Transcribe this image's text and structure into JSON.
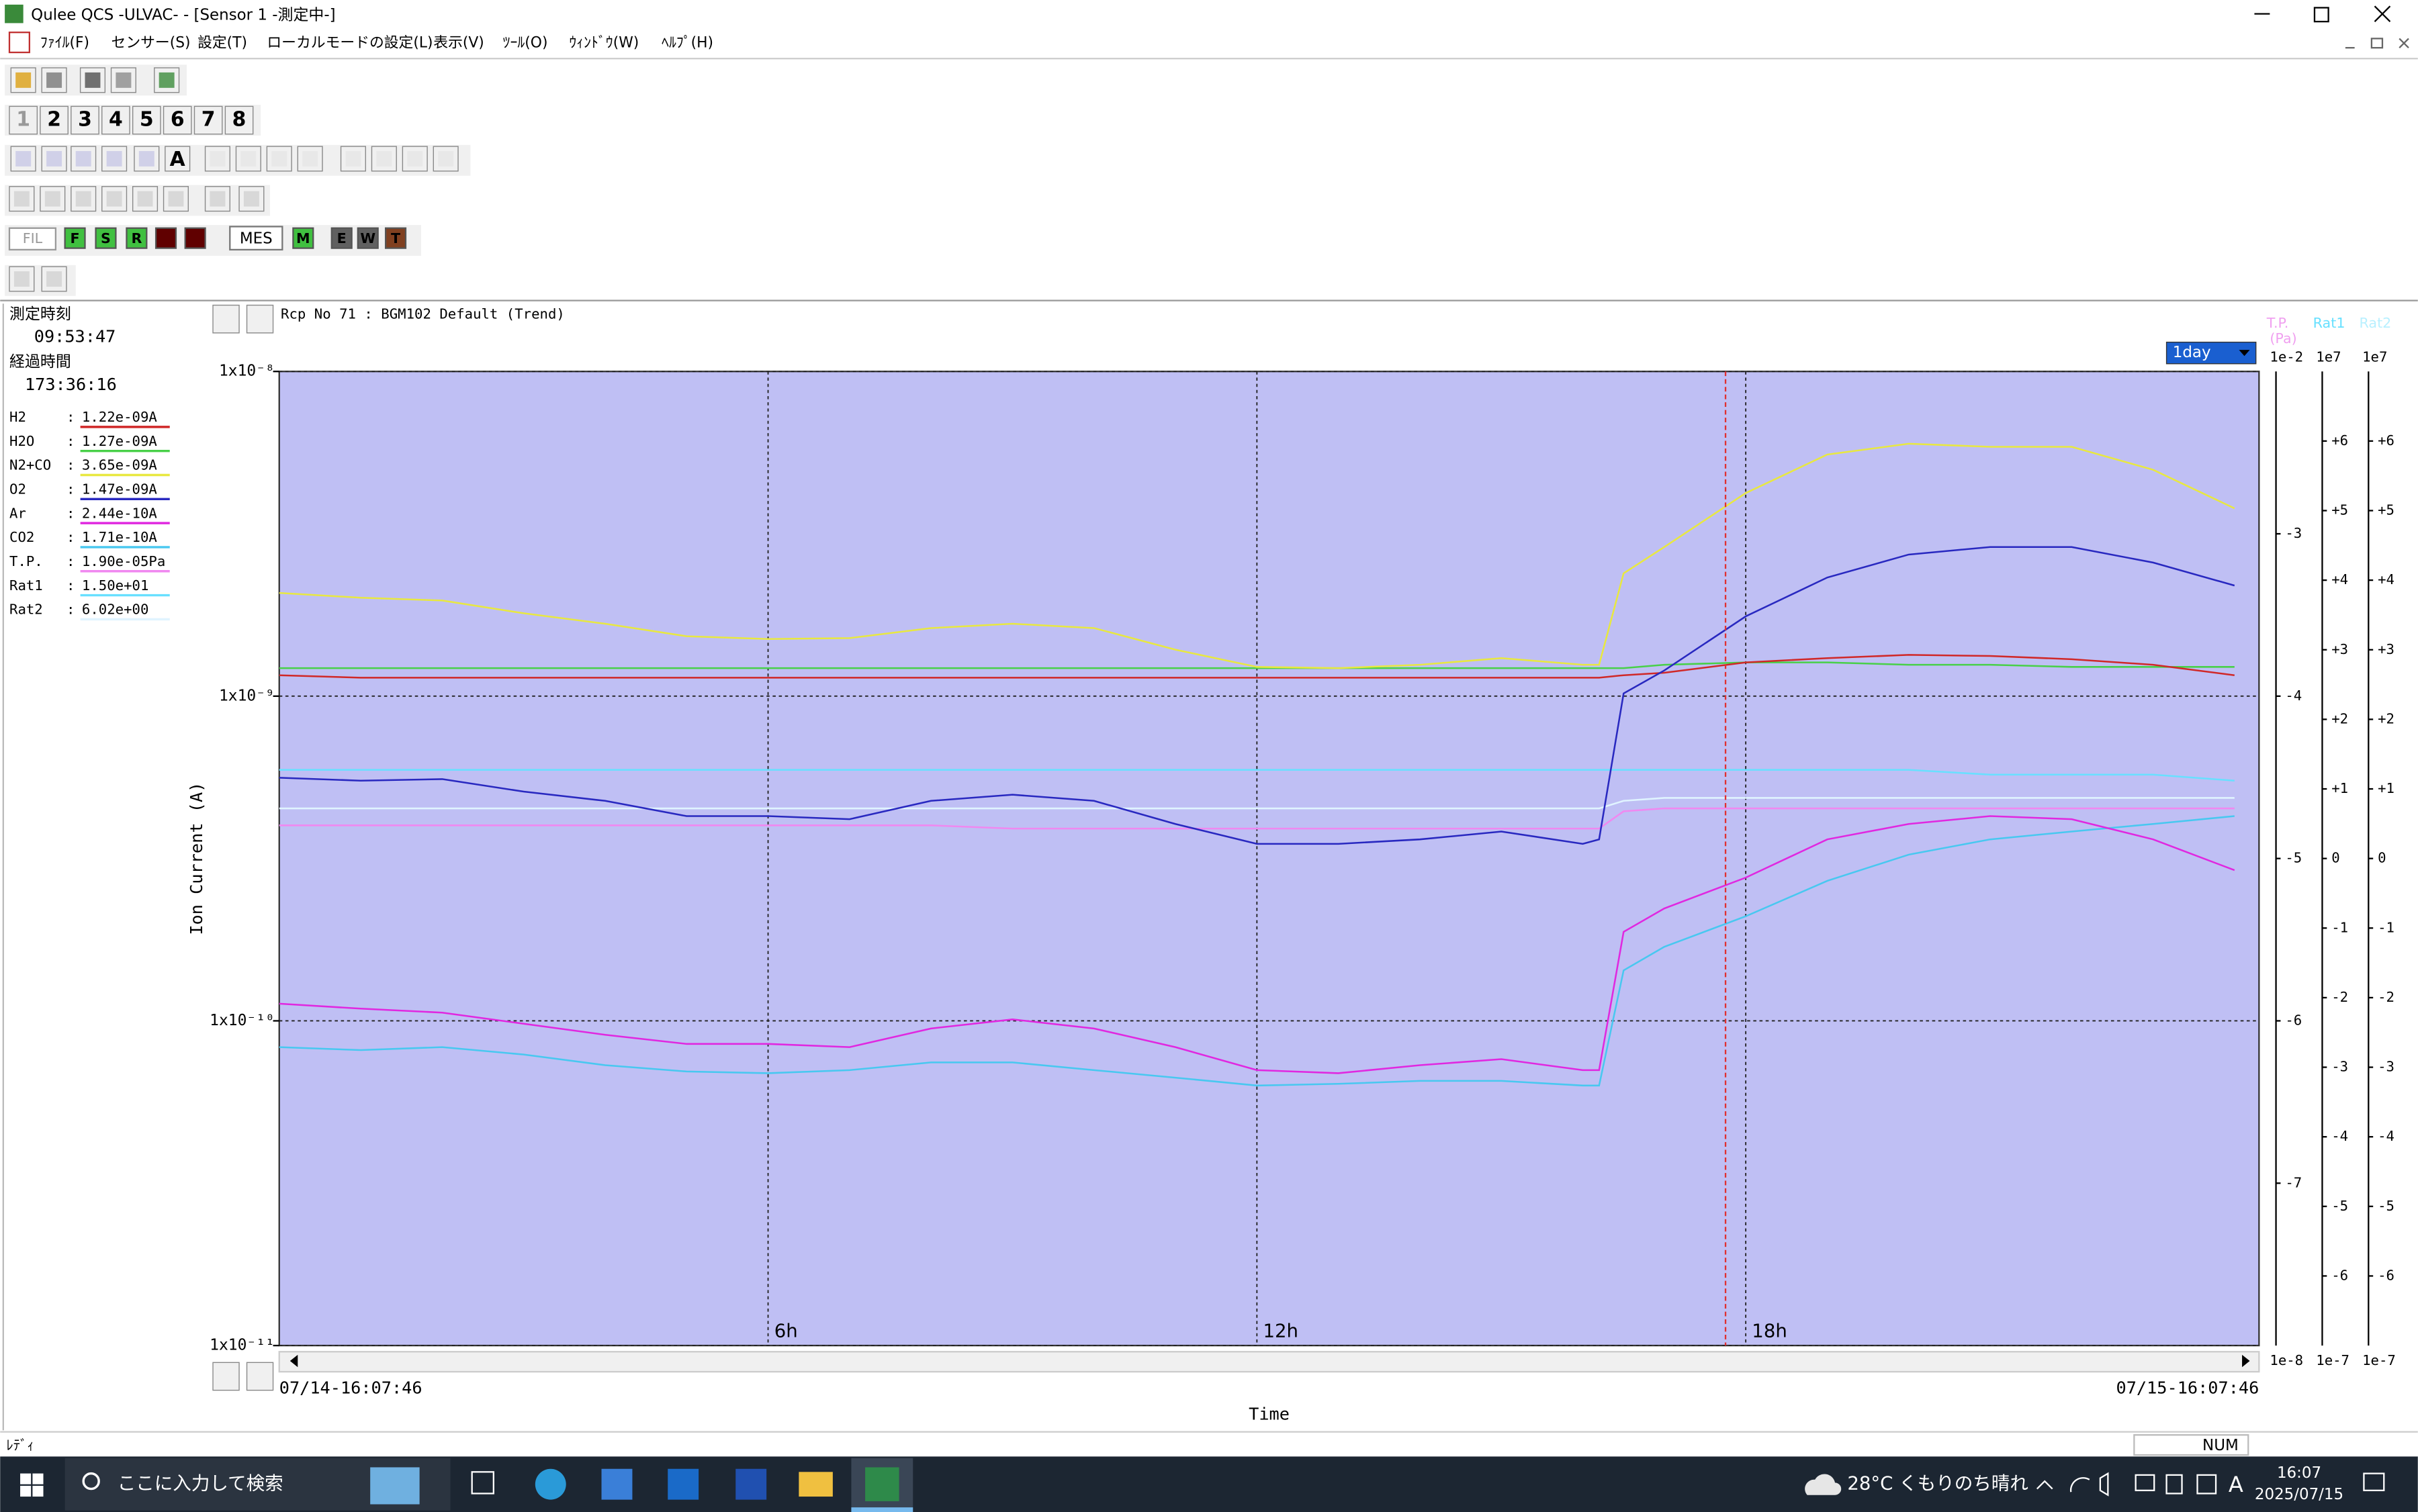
{
  "window": {
    "title": "Qulee QCS -ULVAC-  - [Sensor 1 -測定中-]"
  },
  "menu": [
    "ﾌｧｲﾙ(F)",
    "センサー(S)",
    "設定(T)",
    "ローカルモードの設定(L)",
    "表示(V)",
    "ﾂｰﾙ(O)",
    "ｳｨﾝﾄﾞｳ(W)",
    "ﾍﾙﾌﾟ(H)"
  ],
  "sensor_tabs": [
    "1",
    "2",
    "3",
    "4",
    "5",
    "6",
    "7",
    "8"
  ],
  "toolbar": {
    "font_button": "A",
    "filament": "FIL",
    "fil_buttons": [
      "F",
      "S",
      "R"
    ],
    "mes": "MES",
    "mes_buttons": [
      "M",
      "E",
      "W",
      "T"
    ]
  },
  "panel": {
    "time_label": "測定時刻",
    "time": "09:53:47",
    "elapsed_label": "経過時間",
    "elapsed": "173:36:16",
    "separator": ":"
  },
  "chart_data": {
    "type": "line",
    "title": "Rcp No 71 : BGM102 Default (Trend)",
    "y_label": "Ion Current (A)",
    "x_label": "Time",
    "x_start_label": "07/14-16:07:46",
    "x_end_label": "07/15-16:07:46",
    "range_select": "1day",
    "log_y": true,
    "grid": true,
    "ylim": [
      1e-11,
      1e-08
    ],
    "yticks": [
      {
        "value": 1e-08,
        "label": "1x10⁻⁸"
      },
      {
        "value": 1e-09,
        "label": "1x10⁻⁹"
      },
      {
        "value": 1e-10,
        "label": "1x10⁻¹⁰"
      },
      {
        "value": 1e-11,
        "label": "1x10⁻¹¹"
      }
    ],
    "xlim": [
      0,
      24.3
    ],
    "xticks": [
      {
        "value": 6,
        "label": "6h"
      },
      {
        "value": 12,
        "label": "12h"
      },
      {
        "value": 18,
        "label": "18h"
      }
    ],
    "x": [
      0,
      1,
      2,
      3,
      4,
      5,
      6,
      7,
      8,
      9,
      10,
      11,
      12,
      13,
      14,
      15,
      16,
      16.2,
      16.5,
      17,
      18,
      19,
      20,
      21,
      22,
      23,
      24
    ],
    "series": [
      {
        "name": "H2",
        "readout": "1.22e-09A",
        "color": "#d02828",
        "values": [
          1.16e-09,
          1.14e-09,
          1.14e-09,
          1.14e-09,
          1.14e-09,
          1.14e-09,
          1.14e-09,
          1.14e-09,
          1.14e-09,
          1.14e-09,
          1.14e-09,
          1.14e-09,
          1.14e-09,
          1.14e-09,
          1.14e-09,
          1.14e-09,
          1.14e-09,
          1.14e-09,
          1.16e-09,
          1.18e-09,
          1.27e-09,
          1.31e-09,
          1.34e-09,
          1.33e-09,
          1.3e-09,
          1.25e-09,
          1.16e-09
        ]
      },
      {
        "name": "H2O",
        "readout": "1.27e-09A",
        "color": "#48d048",
        "values": [
          1.22e-09,
          1.22e-09,
          1.22e-09,
          1.22e-09,
          1.22e-09,
          1.22e-09,
          1.22e-09,
          1.22e-09,
          1.22e-09,
          1.22e-09,
          1.22e-09,
          1.22e-09,
          1.22e-09,
          1.22e-09,
          1.22e-09,
          1.22e-09,
          1.22e-09,
          1.22e-09,
          1.22e-09,
          1.25e-09,
          1.27e-09,
          1.27e-09,
          1.25e-09,
          1.25e-09,
          1.23e-09,
          1.23e-09,
          1.23e-09
        ]
      },
      {
        "name": "N2+CO",
        "readout": "3.65e-09A",
        "color": "#e8e840",
        "values": [
          2.08e-09,
          2.01e-09,
          1.97e-09,
          1.8e-09,
          1.67e-09,
          1.53e-09,
          1.5e-09,
          1.51e-09,
          1.62e-09,
          1.67e-09,
          1.62e-09,
          1.39e-09,
          1.23e-09,
          1.22e-09,
          1.25e-09,
          1.31e-09,
          1.25e-09,
          1.25e-09,
          2.39e-09,
          2.88e-09,
          4.22e-09,
          5.55e-09,
          5.99e-09,
          5.86e-09,
          5.86e-09,
          4.98e-09,
          3.79e-09
        ]
      },
      {
        "name": "O2",
        "readout": "1.47e-09A",
        "color": "#2828c0",
        "values": [
          5.61e-10,
          5.49e-10,
          5.55e-10,
          5.08e-10,
          4.76e-10,
          4.27e-10,
          4.27e-10,
          4.18e-10,
          4.76e-10,
          4.97e-10,
          4.76e-10,
          4.04e-10,
          3.51e-10,
          3.51e-10,
          3.62e-10,
          3.83e-10,
          3.51e-10,
          3.62e-10,
          1.02e-09,
          1.2e-09,
          1.76e-09,
          2.32e-09,
          2.73e-09,
          2.88e-09,
          2.88e-09,
          2.58e-09,
          2.19e-09
        ]
      },
      {
        "name": "Ar",
        "readout": "2.44e-10A",
        "color": "#e028e0",
        "values": [
          1.13e-10,
          1.09e-10,
          1.06e-10,
          9.8e-11,
          9.06e-11,
          8.49e-11,
          8.49e-11,
          8.3e-11,
          9.47e-11,
          1.01e-10,
          9.47e-11,
          8.3e-11,
          7.05e-11,
          6.9e-11,
          7.3e-11,
          7.62e-11,
          7.05e-11,
          7.05e-11,
          1.88e-10,
          2.22e-10,
          2.76e-10,
          3.62e-10,
          4.04e-10,
          4.27e-10,
          4.18e-10,
          3.62e-10,
          2.91e-10
        ]
      },
      {
        "name": "CO2",
        "readout": "1.71e-10A",
        "color": "#48c8f0",
        "values": [
          8.3e-11,
          8.13e-11,
          8.3e-11,
          7.87e-11,
          7.3e-11,
          6.98e-11,
          6.9e-11,
          7.05e-11,
          7.45e-11,
          7.45e-11,
          7.05e-11,
          6.68e-11,
          6.32e-11,
          6.4e-11,
          6.53e-11,
          6.53e-11,
          6.32e-11,
          6.32e-11,
          1.43e-10,
          1.69e-10,
          2.1e-10,
          2.7e-10,
          3.25e-10,
          3.62e-10,
          3.83e-10,
          4.04e-10,
          4.27e-10
        ]
      },
      {
        "name": "T.P.",
        "readout": "1.90e-05Pa",
        "color": "#f088f0",
        "values": [
          4e-10,
          4e-10,
          4e-10,
          4e-10,
          4e-10,
          4e-10,
          4e-10,
          4e-10,
          4e-10,
          3.91e-10,
          3.91e-10,
          3.91e-10,
          3.91e-10,
          3.91e-10,
          3.91e-10,
          3.91e-10,
          3.91e-10,
          3.91e-10,
          4.42e-10,
          4.51e-10,
          4.51e-10,
          4.51e-10,
          4.51e-10,
          4.51e-10,
          4.51e-10,
          4.51e-10,
          4.51e-10
        ]
      },
      {
        "name": "Rat1",
        "readout": "1.50e+01",
        "color": "#68e0ff",
        "values": [
          5.93e-10,
          5.93e-10,
          5.93e-10,
          5.93e-10,
          5.93e-10,
          5.93e-10,
          5.93e-10,
          5.93e-10,
          5.93e-10,
          5.93e-10,
          5.93e-10,
          5.93e-10,
          5.93e-10,
          5.93e-10,
          5.93e-10,
          5.93e-10,
          5.93e-10,
          5.93e-10,
          5.93e-10,
          5.93e-10,
          5.93e-10,
          5.93e-10,
          5.93e-10,
          5.73e-10,
          5.73e-10,
          5.73e-10,
          5.49e-10
        ]
      },
      {
        "name": "Rat2",
        "readout": "6.02e+00",
        "color": "#e0f4ff",
        "values": [
          4.51e-10,
          4.51e-10,
          4.51e-10,
          4.51e-10,
          4.51e-10,
          4.51e-10,
          4.51e-10,
          4.51e-10,
          4.51e-10,
          4.51e-10,
          4.51e-10,
          4.51e-10,
          4.51e-10,
          4.51e-10,
          4.51e-10,
          4.51e-10,
          4.51e-10,
          4.51e-10,
          4.76e-10,
          4.86e-10,
          4.86e-10,
          4.86e-10,
          4.86e-10,
          4.86e-10,
          4.86e-10,
          4.86e-10,
          4.86e-10
        ]
      }
    ],
    "right_scales": [
      {
        "title": "T.P.",
        "unit": "(Pa)",
        "color": "#f0a0f0",
        "top": "1e-2",
        "bottom": "1e-8",
        "ticks": [
          "-3",
          "-4",
          "-5",
          "-6",
          "-7"
        ]
      },
      {
        "title": "Rat1",
        "color": "#68e0ff",
        "top": "1e7",
        "bottom": "1e-7",
        "ticks": [
          "+6",
          "+5",
          "+4",
          "+3",
          "+2",
          "+1",
          "0",
          "-1",
          "-2",
          "-3",
          "-4",
          "-5",
          "-6"
        ]
      },
      {
        "title": "Rat2",
        "color": "#b8f0ff",
        "top": "1e7",
        "bottom": "1e-7",
        "ticks": [
          "+6",
          "+5",
          "+4",
          "+3",
          "+2",
          "+1",
          "0",
          "-1",
          "-2",
          "-3",
          "-4",
          "-5",
          "-6"
        ]
      }
    ]
  },
  "status": {
    "ready": "ﾚﾃﾞｨ",
    "num": "NUM"
  },
  "taskbar": {
    "search": "ここに入力して検索",
    "weather": "28°C くもりのち晴れ",
    "ime": "A",
    "time": "16:07",
    "date": "2025/07/15"
  }
}
